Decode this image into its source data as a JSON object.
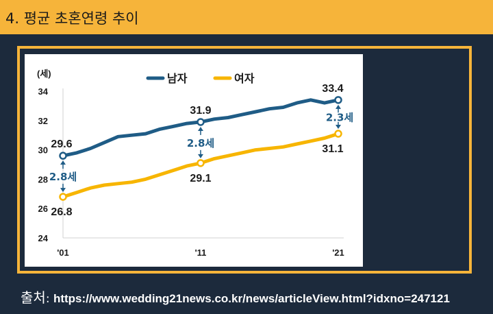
{
  "header": {
    "title": "4. 평균 초혼연령 추이"
  },
  "source": {
    "label": "출처",
    "separator": ": ",
    "url": "https://www.wedding21news.co.kr/news/articleView.html?idxno=247121"
  },
  "colors": {
    "header_bg": "#f6b43a",
    "page_bg": "#1c2a3c",
    "male": "#1f5c86",
    "female": "#f7b500"
  },
  "chart_data": {
    "type": "line",
    "ylabel": "(세)",
    "ylim": [
      24,
      34
    ],
    "yticks": [
      24,
      26,
      28,
      30,
      32,
      34
    ],
    "x": [
      2001,
      2002,
      2003,
      2004,
      2005,
      2006,
      2007,
      2008,
      2009,
      2010,
      2011,
      2012,
      2013,
      2014,
      2015,
      2016,
      2017,
      2018,
      2019,
      2020,
      2021
    ],
    "xticks": [
      {
        "x": 2001,
        "label": "'01"
      },
      {
        "x": 2011,
        "label": "'11"
      },
      {
        "x": 2021,
        "label": "'21"
      }
    ],
    "legend_position": "top",
    "series": [
      {
        "name": "남자",
        "color": "#1f5c86",
        "values": [
          29.6,
          29.8,
          30.1,
          30.5,
          30.9,
          31.0,
          31.1,
          31.4,
          31.6,
          31.8,
          31.9,
          32.1,
          32.2,
          32.4,
          32.6,
          32.8,
          32.9,
          33.2,
          33.4,
          33.2,
          33.4
        ]
      },
      {
        "name": "여자",
        "color": "#f7b500",
        "values": [
          26.8,
          27.1,
          27.4,
          27.6,
          27.7,
          27.8,
          28.0,
          28.3,
          28.6,
          28.9,
          29.1,
          29.4,
          29.6,
          29.8,
          30.0,
          30.1,
          30.2,
          30.4,
          30.6,
          30.8,
          31.1
        ]
      }
    ],
    "data_labels": [
      {
        "series": 0,
        "x": 2001,
        "text": "29.6",
        "pos": "above"
      },
      {
        "series": 0,
        "x": 2011,
        "text": "31.9",
        "pos": "above"
      },
      {
        "series": 0,
        "x": 2021,
        "text": "33.4",
        "pos": "above"
      },
      {
        "series": 1,
        "x": 2001,
        "text": "26.8",
        "pos": "below"
      },
      {
        "series": 1,
        "x": 2011,
        "text": "29.1",
        "pos": "below"
      },
      {
        "series": 1,
        "x": 2021,
        "text": "31.1",
        "pos": "below"
      }
    ],
    "gaps": [
      {
        "x": 2001,
        "text": "2.8세"
      },
      {
        "x": 2011,
        "text": "2.8세"
      },
      {
        "x": 2021,
        "text": "2.3세"
      }
    ]
  }
}
